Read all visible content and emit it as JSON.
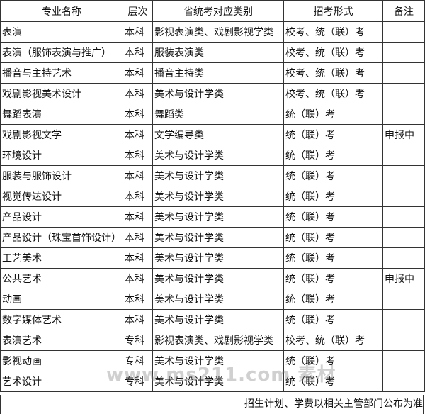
{
  "table": {
    "headers": [
      "专业名称",
      "层次",
      "省统考对应类别",
      "招考形式",
      "备注"
    ],
    "rows": [
      [
        "表演",
        "本科",
        "影视表演类、戏剧影视学类",
        "校考、统（联）考",
        null
      ],
      [
        "表演（服饰表演与推广）",
        "本科",
        "服装表演类",
        "校考、统（联）考",
        null
      ],
      [
        "播音与主持艺术",
        "本科",
        "播音主持类",
        "校考、统（联）考",
        null
      ],
      [
        "戏剧影视美术设计",
        "本科",
        "美术与设计学类",
        "校考、统（联）考",
        null
      ],
      [
        "舞蹈表演",
        "本科",
        "舞蹈类",
        "统（联）考",
        null
      ],
      [
        "戏剧影视文学",
        "本科",
        "文学编导类",
        "统（联）考",
        "申报中"
      ],
      [
        "环境设计",
        "本科",
        "美术与设计学类",
        "统（联）考",
        null
      ],
      [
        "服装与服饰设计",
        "本科",
        "美术与设计学类",
        "统（联）考",
        null
      ],
      [
        "视觉传达设计",
        "本科",
        "美术与设计学类",
        "统（联）考",
        null
      ],
      [
        "产品设计",
        "本科",
        "美术与设计学类",
        "统（联）考",
        null
      ],
      [
        "产品设计（珠宝首饰设计）",
        "本科",
        "美术与设计学类",
        "统（联）考",
        null
      ],
      [
        "工艺美术",
        "本科",
        "美术与设计学类",
        "统（联）考",
        null
      ],
      [
        "公共艺术",
        "本科",
        "美术与设计学类",
        "统（联）考",
        "申报中"
      ],
      [
        "动画",
        "本科",
        "美术与设计学类",
        "统（联）考",
        null
      ],
      [
        "数字媒体艺术",
        "本科",
        "美术与设计学类",
        "统（联）考",
        null
      ],
      [
        "表演艺术",
        "专科",
        "影视表演类、戏剧影视学类",
        "校考、统（联）考",
        null
      ],
      [
        "影视动画",
        "专科",
        "美术与设计学类",
        "统（联）考",
        null
      ],
      [
        "艺术设计",
        "专科",
        "美术与设计学类",
        "统（联）考",
        null
      ]
    ],
    "footer": "招生计划、学费以相关主管部门公布为准"
  },
  "watermark": "www.ms211.com 素材"
}
